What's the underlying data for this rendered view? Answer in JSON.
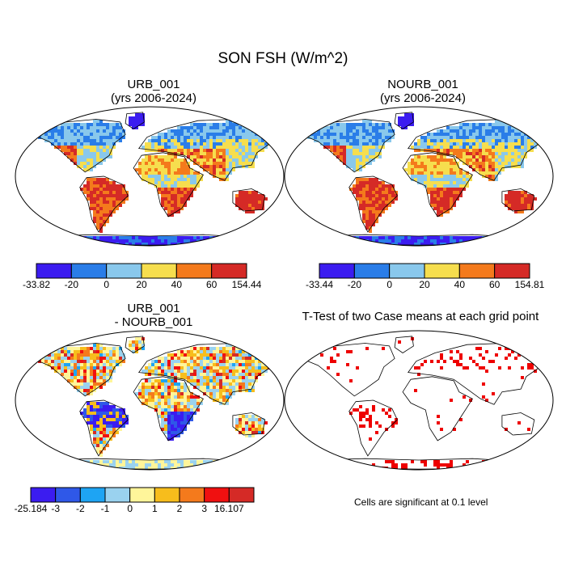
{
  "figure": {
    "title": "SON FSH (W/m^2)"
  },
  "panels": [
    {
      "id": "urb",
      "title_line1": "URB_001",
      "title_line2": "(yrs 2006-2024)"
    },
    {
      "id": "nourb",
      "title_line1": "NOURB_001",
      "title_line2": "(yrs 2006-2024)"
    },
    {
      "id": "diff",
      "title_line1": "URB_001",
      "title_line2": "- NOURB_001"
    },
    {
      "id": "ttest",
      "title_line1": "T-Test of two Case means at each grid point",
      "title_line2": ""
    }
  ],
  "colorbars": {
    "urb": {
      "colors": [
        "#3b1cf0",
        "#2a7de8",
        "#89c8ec",
        "#f6de4e",
        "#f47a1c",
        "#d52a26"
      ],
      "labels": [
        "-33.82",
        "-20",
        "0",
        "20",
        "40",
        "60",
        "154.44"
      ]
    },
    "nourb": {
      "colors": [
        "#3b1cf0",
        "#2a7de8",
        "#89c8ec",
        "#f6de4e",
        "#f47a1c",
        "#d52a26"
      ],
      "labels": [
        "-33.44",
        "-20",
        "0",
        "20",
        "40",
        "60",
        "154.81"
      ]
    },
    "diff": {
      "colors": [
        "#3b1cf0",
        "#2f58e8",
        "#1ea4f3",
        "#9ad2ef",
        "#fff59a",
        "#f7bd1c",
        "#f47a1c",
        "#f01010",
        "#d52a26"
      ],
      "labels": [
        "-25.184",
        "-3",
        "-2",
        "-1",
        "0",
        "1",
        "2",
        "3",
        "16.107"
      ]
    }
  },
  "ttest": {
    "significance_note": "Cells are significant at 0.1 level",
    "marker_color": "#ee0000"
  }
}
